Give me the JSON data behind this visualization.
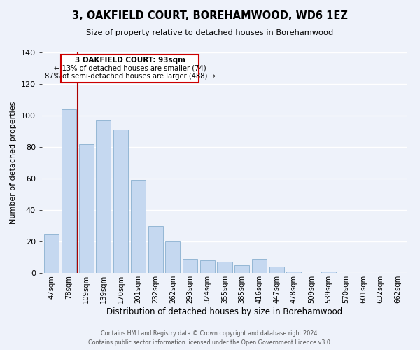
{
  "title": "3, OAKFIELD COURT, BOREHAMWOOD, WD6 1EZ",
  "subtitle": "Size of property relative to detached houses in Borehamwood",
  "xlabel": "Distribution of detached houses by size in Borehamwood",
  "ylabel": "Number of detached properties",
  "bar_labels": [
    "47sqm",
    "78sqm",
    "109sqm",
    "139sqm",
    "170sqm",
    "201sqm",
    "232sqm",
    "262sqm",
    "293sqm",
    "324sqm",
    "355sqm",
    "385sqm",
    "416sqm",
    "447sqm",
    "478sqm",
    "509sqm",
    "539sqm",
    "570sqm",
    "601sqm",
    "632sqm",
    "662sqm"
  ],
  "bar_values": [
    25,
    104,
    82,
    97,
    91,
    59,
    30,
    20,
    9,
    8,
    7,
    5,
    9,
    4,
    1,
    0,
    1,
    0,
    0,
    0,
    0
  ],
  "bar_color": "#c5d8f0",
  "bar_edge_color": "#8ab0d0",
  "annotation_text_line1": "3 OAKFIELD COURT: 93sqm",
  "annotation_text_line2": "← 13% of detached houses are smaller (74)",
  "annotation_text_line3": "87% of semi-detached houses are larger (488) →",
  "ylim": [
    0,
    140
  ],
  "yticks": [
    0,
    20,
    40,
    60,
    80,
    100,
    120,
    140
  ],
  "vline_color": "#aa0000",
  "vline_x_index": 1,
  "bg_color": "#eef2fa",
  "grid_color": "#ffffff",
  "footer_line1": "Contains HM Land Registry data © Crown copyright and database right 2024.",
  "footer_line2": "Contains public sector information licensed under the Open Government Licence v3.0."
}
